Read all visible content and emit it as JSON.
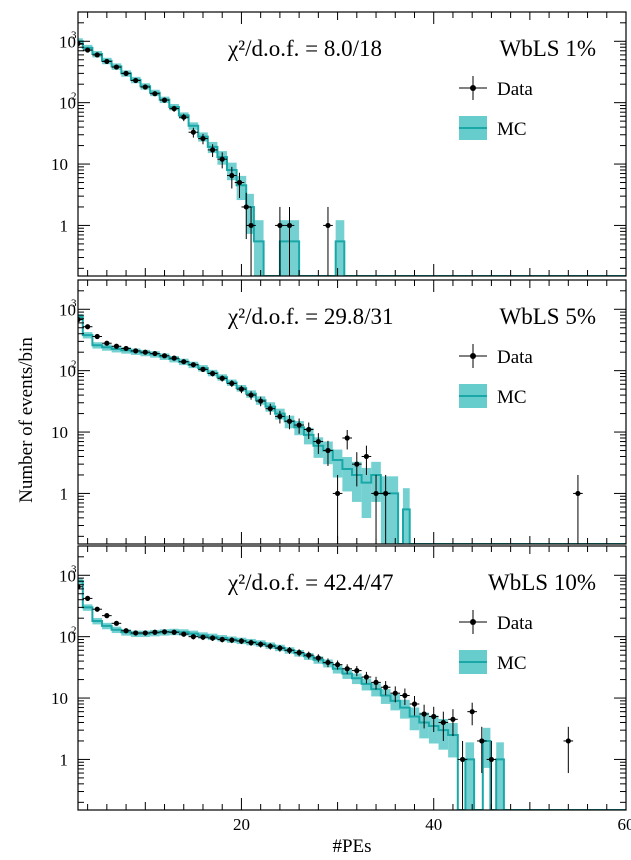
{
  "figure": {
    "x_axis_label": "#PEs",
    "y_axis_label": "Number of events/bin"
  },
  "colors": {
    "data": "#000000",
    "mc_line": "#1aa7a7",
    "mc_band": "#66cccc"
  },
  "chart_data": [
    {
      "type": "line",
      "chi2_label": "χ²/d.o.f. = 8.0/18",
      "sample_label": "WbLS 1%",
      "legend": [
        "Data",
        "MC"
      ],
      "legend_position": "top-right",
      "x_range": [
        3,
        60
      ],
      "y_range": [
        0.15,
        3000
      ],
      "y_scale": "log",
      "x_ticks": [
        20,
        40,
        60
      ],
      "y_ticks": [
        1,
        10,
        100,
        1000
      ],
      "data_points": [
        [
          3,
          920,
          30
        ],
        [
          4,
          720,
          27
        ],
        [
          5,
          600,
          24
        ],
        [
          6,
          470,
          22
        ],
        [
          7,
          380,
          20
        ],
        [
          8,
          300,
          17
        ],
        [
          9,
          230,
          15
        ],
        [
          10,
          180,
          13
        ],
        [
          11,
          140,
          12
        ],
        [
          12,
          110,
          10
        ],
        [
          13,
          80,
          9
        ],
        [
          14,
          58,
          8
        ],
        [
          15,
          33,
          6
        ],
        [
          16,
          26,
          5
        ],
        [
          17,
          17,
          4
        ],
        [
          18,
          12,
          3.5
        ],
        [
          19,
          6.5,
          2.5
        ],
        [
          19.8,
          5,
          2.2
        ],
        [
          20.5,
          2,
          1.4
        ],
        [
          21,
          1,
          1
        ],
        [
          24,
          1,
          1
        ],
        [
          25,
          1,
          1
        ],
        [
          29,
          1,
          1
        ]
      ],
      "mc_steps": [
        [
          2.5,
          1000
        ],
        [
          3.5,
          780
        ],
        [
          4.5,
          620
        ],
        [
          5.5,
          480
        ],
        [
          6.5,
          390
        ],
        [
          7.5,
          300
        ],
        [
          8.5,
          235
        ],
        [
          9.5,
          185
        ],
        [
          10.5,
          145
        ],
        [
          11.5,
          112
        ],
        [
          12.5,
          85
        ],
        [
          13.5,
          62
        ],
        [
          14.5,
          42
        ],
        [
          15.5,
          28
        ],
        [
          16.5,
          19
        ],
        [
          17.5,
          13
        ],
        [
          18.5,
          8
        ],
        [
          19.5,
          4.5
        ],
        [
          20.5,
          2
        ],
        [
          21.3,
          0.55
        ],
        [
          22.3,
          0.1
        ],
        [
          24,
          0.55
        ],
        [
          26,
          0.1
        ],
        [
          29.8,
          0.55
        ],
        [
          30.7,
          0.1
        ],
        [
          60,
          0.1
        ]
      ]
    },
    {
      "type": "line",
      "chi2_label": "χ²/d.o.f. = 29.8/31",
      "sample_label": "WbLS 5%",
      "legend": [
        "Data",
        "MC"
      ],
      "legend_position": "top-right",
      "x_range": [
        3,
        60
      ],
      "y_range": [
        0.15,
        3000
      ],
      "y_scale": "log",
      "x_ticks": [
        20,
        40,
        60
      ],
      "y_ticks": [
        1,
        10,
        100,
        1000
      ],
      "data_points": [
        [
          3,
          680,
          26
        ],
        [
          4,
          520,
          23
        ],
        [
          5,
          360,
          19
        ],
        [
          6,
          280,
          17
        ],
        [
          7,
          250,
          16
        ],
        [
          8,
          230,
          15
        ],
        [
          9,
          210,
          14
        ],
        [
          10,
          200,
          14
        ],
        [
          11,
          190,
          14
        ],
        [
          12,
          175,
          13
        ],
        [
          13,
          160,
          13
        ],
        [
          14,
          140,
          12
        ],
        [
          15,
          125,
          11
        ],
        [
          16,
          105,
          10
        ],
        [
          17,
          90,
          9.5
        ],
        [
          18,
          75,
          8.7
        ],
        [
          19,
          62,
          7.9
        ],
        [
          20,
          50,
          7
        ],
        [
          21,
          40,
          6.3
        ],
        [
          22,
          32,
          5.7
        ],
        [
          23,
          24,
          4.9
        ],
        [
          24,
          18,
          4.2
        ],
        [
          25,
          15,
          3.9
        ],
        [
          26,
          13,
          3.6
        ],
        [
          27,
          11,
          3.3
        ],
        [
          28,
          7,
          2.6
        ],
        [
          29,
          5,
          2.2
        ],
        [
          30,
          1,
          1
        ],
        [
          31,
          8,
          2.8
        ],
        [
          32,
          3,
          1.7
        ],
        [
          33,
          4,
          2
        ],
        [
          34,
          1,
          1
        ],
        [
          35,
          1,
          1
        ],
        [
          55,
          1,
          1
        ]
      ],
      "mc_steps": [
        [
          2.5,
          750
        ],
        [
          3.5,
          380
        ],
        [
          4.5,
          260
        ],
        [
          5.5,
          240
        ],
        [
          6.5,
          225
        ],
        [
          7.5,
          215
        ],
        [
          8.5,
          205
        ],
        [
          9.5,
          195
        ],
        [
          10.5,
          185
        ],
        [
          11.5,
          170
        ],
        [
          12.5,
          155
        ],
        [
          13.5,
          140
        ],
        [
          14.5,
          125
        ],
        [
          15.5,
          110
        ],
        [
          16.5,
          92
        ],
        [
          17.5,
          78
        ],
        [
          18.5,
          64
        ],
        [
          19.5,
          52
        ],
        [
          20.5,
          42
        ],
        [
          21.5,
          33
        ],
        [
          22.5,
          26
        ],
        [
          23.5,
          20
        ],
        [
          24.5,
          15
        ],
        [
          25.5,
          12
        ],
        [
          26.5,
          9
        ],
        [
          27.5,
          6
        ],
        [
          28.5,
          5
        ],
        [
          29.5,
          3.5
        ],
        [
          30.5,
          2.5
        ],
        [
          31.5,
          2
        ],
        [
          32.5,
          1.5
        ],
        [
          33.5,
          2
        ],
        [
          34.5,
          1
        ],
        [
          35.3,
          1
        ],
        [
          36.3,
          0.1
        ],
        [
          36.8,
          0.55
        ],
        [
          37.5,
          0.1
        ],
        [
          60,
          0.1
        ]
      ]
    },
    {
      "type": "line",
      "chi2_label": "χ²/d.o.f. = 42.4/47",
      "sample_label": "WbLS 10%",
      "legend": [
        "Data",
        "MC"
      ],
      "legend_position": "top-right",
      "x_range": [
        3,
        60
      ],
      "y_range": [
        0.15,
        3000
      ],
      "y_scale": "log",
      "x_ticks": [
        20,
        40,
        60
      ],
      "y_ticks": [
        1,
        10,
        100,
        1000
      ],
      "x_label": "#PEs",
      "data_points": [
        [
          3,
          650,
          25
        ],
        [
          4,
          420,
          20
        ],
        [
          5,
          280,
          17
        ],
        [
          6,
          220,
          15
        ],
        [
          7,
          165,
          13
        ],
        [
          8,
          125,
          11
        ],
        [
          9,
          115,
          11
        ],
        [
          10,
          115,
          11
        ],
        [
          11,
          118,
          11
        ],
        [
          12,
          120,
          11
        ],
        [
          13,
          118,
          11
        ],
        [
          14,
          110,
          10
        ],
        [
          15,
          100,
          10
        ],
        [
          16,
          98,
          10
        ],
        [
          17,
          95,
          10
        ],
        [
          18,
          90,
          9.5
        ],
        [
          19,
          88,
          9.4
        ],
        [
          20,
          85,
          9.2
        ],
        [
          21,
          80,
          8.9
        ],
        [
          22,
          75,
          8.7
        ],
        [
          23,
          70,
          8.4
        ],
        [
          24,
          65,
          8.1
        ],
        [
          25,
          60,
          7.7
        ],
        [
          26,
          55,
          7.4
        ],
        [
          27,
          50,
          7.1
        ],
        [
          28,
          45,
          6.7
        ],
        [
          29,
          38,
          6.2
        ],
        [
          30,
          35,
          5.9
        ],
        [
          31,
          30,
          5.5
        ],
        [
          32,
          28,
          5.3
        ],
        [
          33,
          22,
          4.7
        ],
        [
          34,
          18,
          4.2
        ],
        [
          35,
          15,
          3.9
        ],
        [
          36,
          12,
          3.5
        ],
        [
          37,
          11,
          3.3
        ],
        [
          38,
          8,
          2.8
        ],
        [
          39,
          5.5,
          2.3
        ],
        [
          40,
          5,
          2.2
        ],
        [
          41,
          4,
          2
        ],
        [
          42,
          4.5,
          2.1
        ],
        [
          43,
          1,
          1
        ],
        [
          44,
          6,
          2.4
        ],
        [
          45,
          2,
          1.4
        ],
        [
          46,
          1,
          1
        ],
        [
          54,
          2,
          1.4
        ]
      ],
      "mc_steps": [
        [
          2.5,
          800
        ],
        [
          3.5,
          300
        ],
        [
          4.5,
          180
        ],
        [
          5.5,
          150
        ],
        [
          6.5,
          130
        ],
        [
          7.5,
          118
        ],
        [
          8.5,
          112
        ],
        [
          9.5,
          112
        ],
        [
          10.5,
          115
        ],
        [
          11.5,
          118
        ],
        [
          12.5,
          120
        ],
        [
          13.5,
          118
        ],
        [
          14.5,
          112
        ],
        [
          15.5,
          105
        ],
        [
          16.5,
          100
        ],
        [
          17.5,
          95
        ],
        [
          18.5,
          90
        ],
        [
          19.5,
          86
        ],
        [
          20.5,
          82
        ],
        [
          21.5,
          78
        ],
        [
          22.5,
          72
        ],
        [
          23.5,
          66
        ],
        [
          24.5,
          60
        ],
        [
          25.5,
          54
        ],
        [
          26.5,
          48
        ],
        [
          27.5,
          42
        ],
        [
          28.5,
          37
        ],
        [
          29.5,
          30
        ],
        [
          30.5,
          25
        ],
        [
          31.5,
          21
        ],
        [
          32.5,
          17
        ],
        [
          33.5,
          14
        ],
        [
          34.5,
          11
        ],
        [
          35.5,
          9
        ],
        [
          36.5,
          7
        ],
        [
          37.5,
          5
        ],
        [
          38.5,
          4
        ],
        [
          39.5,
          3.5
        ],
        [
          40.5,
          3
        ],
        [
          41.5,
          2.5
        ],
        [
          42.5,
          0.1
        ],
        [
          43.3,
          1
        ],
        [
          44.2,
          0.1
        ],
        [
          45.1,
          2
        ],
        [
          45.9,
          0.1
        ],
        [
          46.5,
          1
        ],
        [
          47.3,
          0.1
        ],
        [
          60,
          0.1
        ]
      ]
    }
  ]
}
